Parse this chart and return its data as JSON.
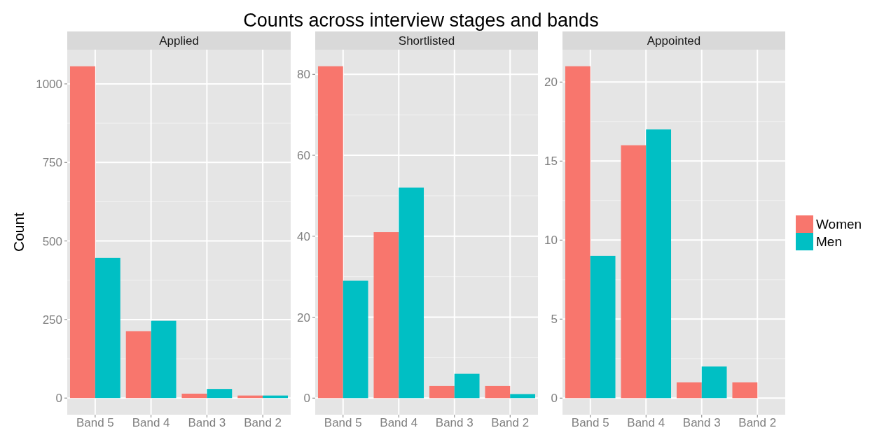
{
  "chart_data": [
    {
      "type": "bar",
      "title": "Counts across interview stages and bands",
      "subtitle": "Applied",
      "ylabel": "Count",
      "categories": [
        "Band 5",
        "Band 4",
        "Band 3",
        "Band 2"
      ],
      "series": [
        {
          "color": "#f8766d",
          "values": [
            1056,
            213,
            14,
            8
          ]
        },
        {
          "color": "#00bfc4",
          "values": [
            446,
            246,
            29,
            8
          ]
        }
      ],
      "ylim": [
        -53,
        1109
      ],
      "yticks": [
        0,
        250,
        500,
        750,
        1000
      ],
      "grid": true,
      "legend": false
    },
    {
      "type": "bar",
      "subtitle": "Shortlisted",
      "categories": [
        "Band 5",
        "Band 4",
        "Band 3",
        "Band 2"
      ],
      "series": [
        {
          "color": "#f8766d",
          "values": [
            82,
            41,
            3,
            3
          ]
        },
        {
          "color": "#00bfc4",
          "values": [
            29,
            52,
            6,
            1
          ]
        }
      ],
      "ylim": [
        -4.1,
        86.1
      ],
      "yticks": [
        0,
        20,
        40,
        60,
        80
      ],
      "grid": true,
      "legend": false
    },
    {
      "type": "bar",
      "subtitle": "Appointed",
      "categories": [
        "Band 5",
        "Band 4",
        "Band 3",
        "Band 2"
      ],
      "series": [
        {
          "name": "Women",
          "color": "#f8766d",
          "values": [
            21,
            16,
            1,
            1
          ]
        },
        {
          "name": "Men",
          "color": "#00bfc4",
          "values": [
            9,
            17,
            2,
            0
          ]
        }
      ],
      "ylim": [
        -1.05,
        22.05
      ],
      "yticks": [
        0,
        5,
        10,
        15,
        20
      ],
      "grid": true,
      "legend": "right"
    }
  ]
}
